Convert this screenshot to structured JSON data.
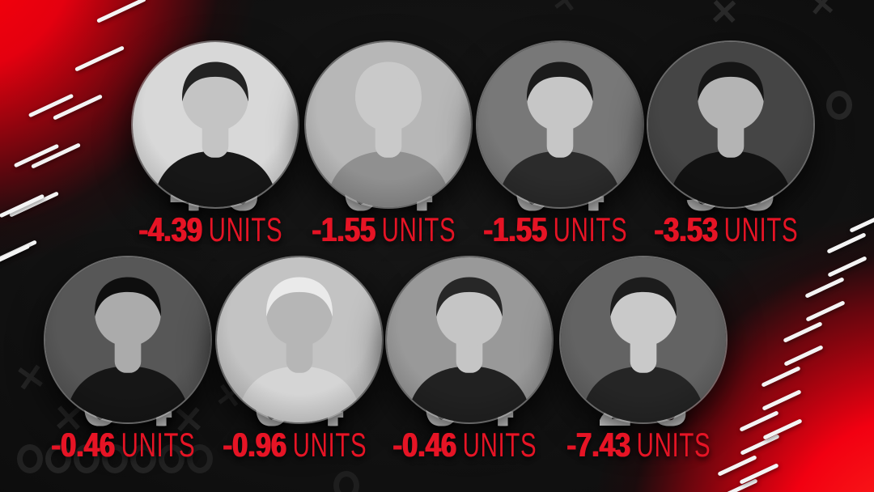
{
  "graphic": {
    "type": "sports-betting-records-board",
    "rows": 2,
    "columns": 4
  },
  "colors": {
    "background": "#101010",
    "accent_red_bright": "#ff0009",
    "record_text": "#ffffff",
    "units_red": "#e61425",
    "pattern_gray": "#3a3a3a",
    "tick_white": "#f4f4f4"
  },
  "background": {
    "pattern_glyphs": [
      "x-mark",
      "o-mark"
    ],
    "corner_decor": "white-diagonal-yard-ticks-over-red-gradient"
  },
  "people": [
    {
      "record": "4-6",
      "units": "-4.39",
      "units_label": "UNITS",
      "photo": {
        "bg": "#d8d8d8",
        "skin": "#c4c4c4",
        "hair": "#232323",
        "clothing": "#171717"
      }
    },
    {
      "record": "6-4",
      "units": "-1.55",
      "units_label": "UNITS",
      "photo": {
        "bg": "#b7b7b7",
        "skin": "#c9c9c9",
        "hair": "#c9c9c9",
        "clothing": "#909090"
      }
    },
    {
      "record": "6-4",
      "units": "-1.55",
      "units_label": "UNITS",
      "photo": {
        "bg": "#787878",
        "skin": "#c6c6c6",
        "hair": "#1b1b1b",
        "clothing": "#2b2b2b"
      }
    },
    {
      "record": "5-5",
      "units": "-3.53",
      "units_label": "UNITS",
      "photo": {
        "bg": "#454545",
        "skin": "#b4b4b4",
        "hair": "#151515",
        "clothing": "#121212"
      }
    },
    {
      "record": "6-4",
      "units": "-0.46",
      "units_label": "UNITS",
      "photo": {
        "bg": "#575757",
        "skin": "#ababab",
        "hair": "#0e0e0e",
        "clothing": "#161616"
      }
    },
    {
      "record": "6-4",
      "units": "-0.96",
      "units_label": "UNITS",
      "photo": {
        "bg": "#c3c3c3",
        "skin": "#b6b6b6",
        "hair": "#eaeaea",
        "clothing": "#d5d5d5"
      }
    },
    {
      "record": "6-4",
      "units": "-0.46",
      "units_label": "UNITS",
      "photo": {
        "bg": "#999999",
        "skin": "#c5c5c5",
        "hair": "#272727",
        "clothing": "#212121"
      }
    },
    {
      "record": "2-8",
      "units": "-7.43",
      "units_label": "UNITS",
      "photo": {
        "bg": "#636363",
        "skin": "#c9c9c9",
        "hair": "#1c1c1c",
        "clothing": "#252525"
      }
    }
  ]
}
